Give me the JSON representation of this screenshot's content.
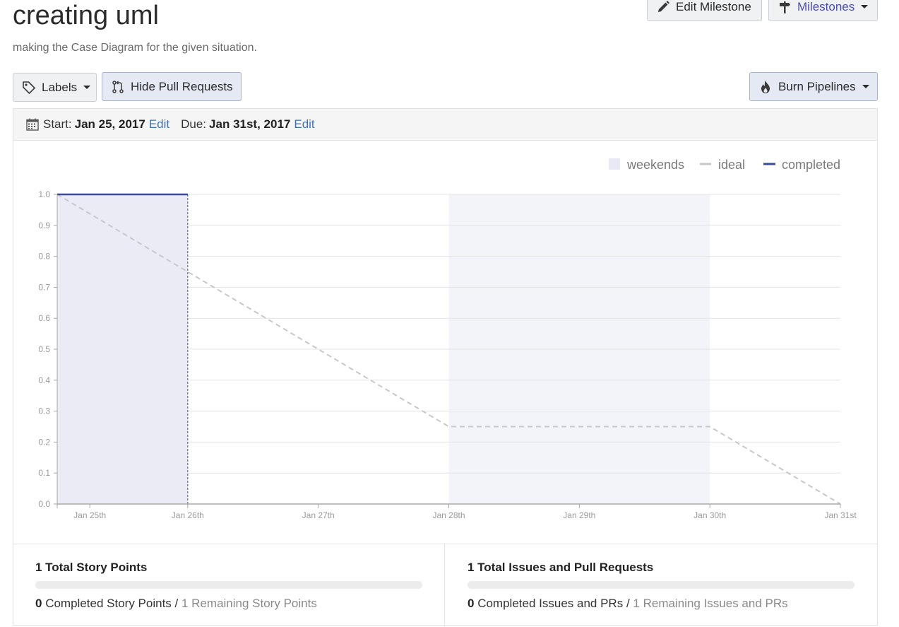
{
  "milestone": {
    "title": "creating uml",
    "description": "making the Case Diagram for the given situation."
  },
  "toolbar": {
    "edit_label": "Edit Milestone",
    "milestones_label": "Milestones",
    "labels_label": "Labels",
    "hide_pr_label": "Hide Pull Requests",
    "burn_label": "Burn Pipelines"
  },
  "dates": {
    "start_label": "Start:",
    "start_value": "Jan 25, 2017",
    "due_label": "Due:",
    "due_value": "Jan 31st, 2017",
    "edit_link": "Edit"
  },
  "colors": {
    "weekend": "#f3f4fa",
    "completed_fill": "#ebebf5",
    "completed_line": "#3c4a99",
    "ideal": "#c8c8cc",
    "grid": "#e3e3e3",
    "axis": "#aaaaaa",
    "progress": "#5ac05c",
    "accent": "#4a4eab"
  },
  "chart_data": {
    "type": "line",
    "legend": [
      "weekends",
      "ideal",
      "completed"
    ],
    "legend_position": "top-right",
    "x_ticks": [
      "Jan 25th",
      "Jan 26th",
      "Jan 27th",
      "Jan 28th",
      "Jan 29th",
      "Jan 30th",
      "Jan 31st"
    ],
    "xlim": [
      "2017-01-25",
      "2017-01-31"
    ],
    "ylim": [
      0,
      1
    ],
    "y_ticks": [
      "0.0",
      "0.1",
      "0.2",
      "0.3",
      "0.4",
      "0.5",
      "0.6",
      "0.7",
      "0.8",
      "0.9",
      "1.0"
    ],
    "weekend_range": [
      "2017-01-28",
      "2017-01-30"
    ],
    "ideal": [
      {
        "date": "2017-01-25",
        "value": 1.0
      },
      {
        "date": "2017-01-28",
        "value": 0.25
      },
      {
        "date": "2017-01-30",
        "value": 0.25
      },
      {
        "date": "2017-01-31",
        "value": 0.0
      }
    ],
    "completed": [
      {
        "date": "2017-01-25",
        "value": 1.0
      },
      {
        "date": "2017-01-26",
        "value": 1.0
      }
    ],
    "grid": true
  },
  "stats": {
    "story_points": {
      "title": "1 Total Story Points",
      "completed": "0",
      "completed_label": "Completed Story Points",
      "separator": "/",
      "remaining_label": "1 Remaining Story Points",
      "progress": 0
    },
    "issues": {
      "title": "1 Total Issues and Pull Requests",
      "completed": "0",
      "completed_label": "Completed Issues and PRs",
      "separator": "/",
      "remaining_label": "1 Remaining Issues and PRs",
      "progress": 0
    }
  }
}
